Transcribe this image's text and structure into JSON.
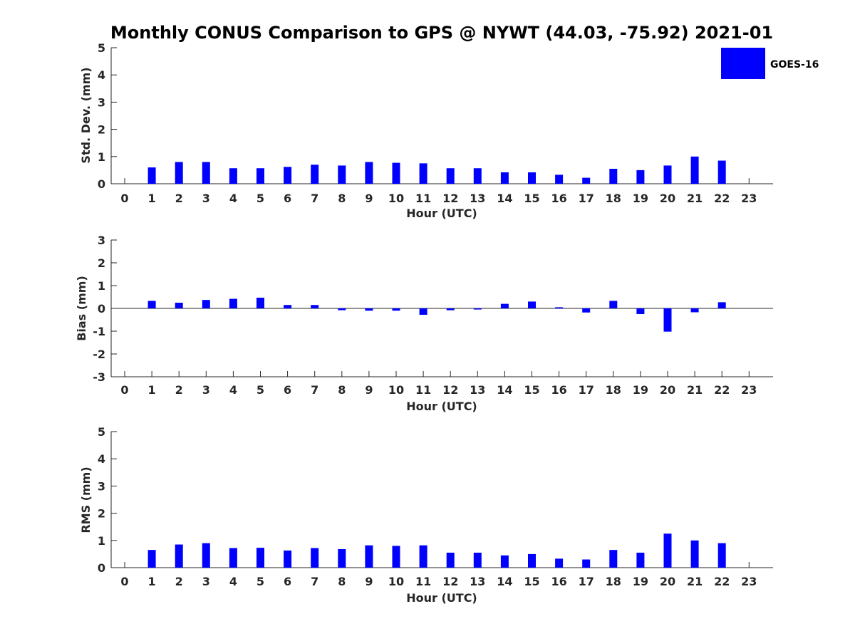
{
  "chart_data": {
    "type": "bar",
    "title": "Monthly CONUS Comparison to GPS @ NYWT (44.03, -75.92) 2021-01",
    "legend": {
      "label": "GOES-16",
      "position": "top-right"
    },
    "color": "#0000ff",
    "categories": [
      "0",
      "1",
      "2",
      "3",
      "4",
      "5",
      "6",
      "7",
      "8",
      "9",
      "10",
      "11",
      "12",
      "13",
      "14",
      "15",
      "16",
      "17",
      "18",
      "19",
      "20",
      "21",
      "22",
      "23"
    ],
    "panels": [
      {
        "name": "std-dev",
        "ylabel": "Std. Dev. (mm)",
        "xlabel": "Hour (UTC)",
        "ylim": [
          0,
          5
        ],
        "yticks": [
          "0",
          "1",
          "2",
          "3",
          "4",
          "5"
        ],
        "values": [
          null,
          0.6,
          0.8,
          0.8,
          0.57,
          0.57,
          0.62,
          0.7,
          0.67,
          0.8,
          0.77,
          0.75,
          0.57,
          0.57,
          0.42,
          0.42,
          0.33,
          0.22,
          0.55,
          0.5,
          0.67,
          1.0,
          0.85,
          null
        ]
      },
      {
        "name": "bias",
        "ylabel": "Bias (mm)",
        "xlabel": "Hour (UTC)",
        "ylim": [
          -3,
          3
        ],
        "yticks": [
          "-3",
          "-2",
          "-1",
          "0",
          "1",
          "2",
          "3"
        ],
        "values": [
          null,
          0.33,
          0.25,
          0.37,
          0.42,
          0.47,
          0.15,
          0.15,
          -0.08,
          -0.1,
          -0.1,
          -0.28,
          -0.08,
          -0.05,
          0.2,
          0.3,
          0.05,
          -0.18,
          0.33,
          -0.25,
          -1.02,
          -0.17,
          0.27,
          null
        ]
      },
      {
        "name": "rms",
        "ylabel": "RMS (mm)",
        "xlabel": "Hour (UTC)",
        "ylim": [
          0,
          5
        ],
        "yticks": [
          "0",
          "1",
          "2",
          "3",
          "4",
          "5"
        ],
        "values": [
          null,
          0.65,
          0.85,
          0.9,
          0.72,
          0.73,
          0.63,
          0.72,
          0.68,
          0.82,
          0.8,
          0.82,
          0.55,
          0.55,
          0.45,
          0.5,
          0.33,
          0.3,
          0.65,
          0.55,
          1.25,
          1.0,
          0.9,
          null
        ]
      }
    ]
  }
}
